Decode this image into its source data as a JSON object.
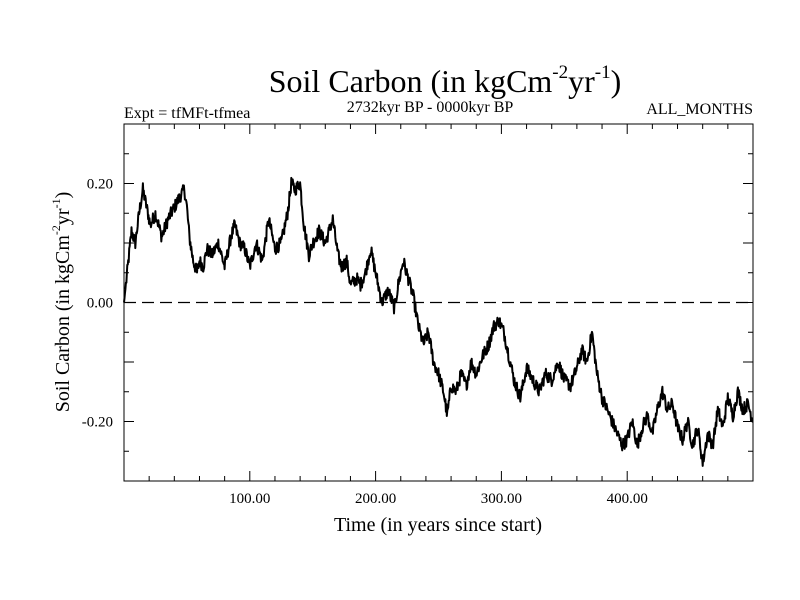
{
  "chart_data": {
    "type": "line",
    "title": "Soil Carbon (in kgCm",
    "title_sup1": "-2",
    "title_mid": "yr",
    "title_sup2": "-1",
    "title_end": ")",
    "subtitle_left": "Expt = tfMFt-tfmea",
    "subtitle_center": "2732kyr BP - 0000kyr BP",
    "subtitle_right": "ALL_MONTHS",
    "xlabel": "Time (in years since start)",
    "ylabel_pre": "Soil Carbon (in kgCm",
    "ylabel_sup1": "-2",
    "ylabel_mid": "yr",
    "ylabel_sup2": "-1",
    "ylabel_end": ")",
    "xlim": [
      0,
      500
    ],
    "ylim": [
      -0.3,
      0.3
    ],
    "x_ticks": [
      {
        "value": 100,
        "label": "100.00"
      },
      {
        "value": 200,
        "label": "200.00"
      },
      {
        "value": 300,
        "label": "300.00"
      },
      {
        "value": 400,
        "label": "400.00"
      }
    ],
    "y_ticks": [
      {
        "value": 0.2,
        "label": "0.20"
      },
      {
        "value": 0.0,
        "label": "0.00"
      },
      {
        "value": -0.2,
        "label": "-0.20"
      }
    ],
    "reference_line": {
      "y": 0.0,
      "style": "dashed"
    },
    "series": [
      {
        "name": "Soil Carbon",
        "x": [
          0,
          3,
          6,
          9,
          12,
          15,
          18,
          21,
          25,
          30,
          35,
          40,
          45,
          48,
          50,
          52,
          55,
          58,
          60,
          63,
          66,
          70,
          75,
          80,
          85,
          88,
          92,
          96,
          100,
          105,
          110,
          115,
          120,
          125,
          130,
          133,
          136,
          140,
          143,
          147,
          150,
          155,
          160,
          163,
          166,
          170,
          173,
          177,
          180,
          185,
          188,
          192,
          196,
          200,
          205,
          210,
          215,
          218,
          222,
          226,
          230,
          234,
          238,
          242,
          246,
          250,
          254,
          257,
          260,
          264,
          268,
          272,
          276,
          280,
          285,
          290,
          294,
          298,
          302,
          306,
          310,
          315,
          320,
          325,
          330,
          335,
          340,
          345,
          350,
          355,
          360,
          364,
          368,
          372,
          376,
          380,
          384,
          388,
          392,
          396,
          400,
          404,
          408,
          412,
          416,
          420,
          424,
          428,
          432,
          436,
          440,
          444,
          448,
          452,
          456,
          460,
          464,
          468,
          472,
          476,
          480,
          484,
          488,
          492,
          496,
          500
        ],
        "values": [
          0.0,
          0.06,
          0.12,
          0.1,
          0.15,
          0.19,
          0.16,
          0.13,
          0.15,
          0.11,
          0.14,
          0.16,
          0.18,
          0.19,
          0.16,
          0.11,
          0.07,
          0.05,
          0.07,
          0.06,
          0.09,
          0.08,
          0.1,
          0.06,
          0.11,
          0.13,
          0.1,
          0.09,
          0.06,
          0.1,
          0.07,
          0.14,
          0.09,
          0.1,
          0.15,
          0.2,
          0.19,
          0.2,
          0.13,
          0.08,
          0.1,
          0.12,
          0.1,
          0.12,
          0.14,
          0.08,
          0.06,
          0.07,
          0.03,
          0.04,
          0.03,
          0.05,
          0.09,
          0.05,
          0.0,
          0.02,
          -0.01,
          0.03,
          0.07,
          0.04,
          0.01,
          -0.04,
          -0.07,
          -0.05,
          -0.1,
          -0.12,
          -0.15,
          -0.19,
          -0.14,
          -0.15,
          -0.12,
          -0.14,
          -0.1,
          -0.12,
          -0.09,
          -0.07,
          -0.04,
          -0.03,
          -0.05,
          -0.09,
          -0.13,
          -0.16,
          -0.11,
          -0.13,
          -0.15,
          -0.12,
          -0.13,
          -0.1,
          -0.13,
          -0.14,
          -0.11,
          -0.08,
          -0.1,
          -0.05,
          -0.12,
          -0.16,
          -0.18,
          -0.2,
          -0.22,
          -0.24,
          -0.23,
          -0.2,
          -0.24,
          -0.21,
          -0.19,
          -0.22,
          -0.18,
          -0.15,
          -0.18,
          -0.17,
          -0.21,
          -0.23,
          -0.2,
          -0.24,
          -0.21,
          -0.27,
          -0.22,
          -0.24,
          -0.18,
          -0.21,
          -0.16,
          -0.19,
          -0.15,
          -0.18,
          -0.17,
          -0.2
        ]
      }
    ]
  }
}
